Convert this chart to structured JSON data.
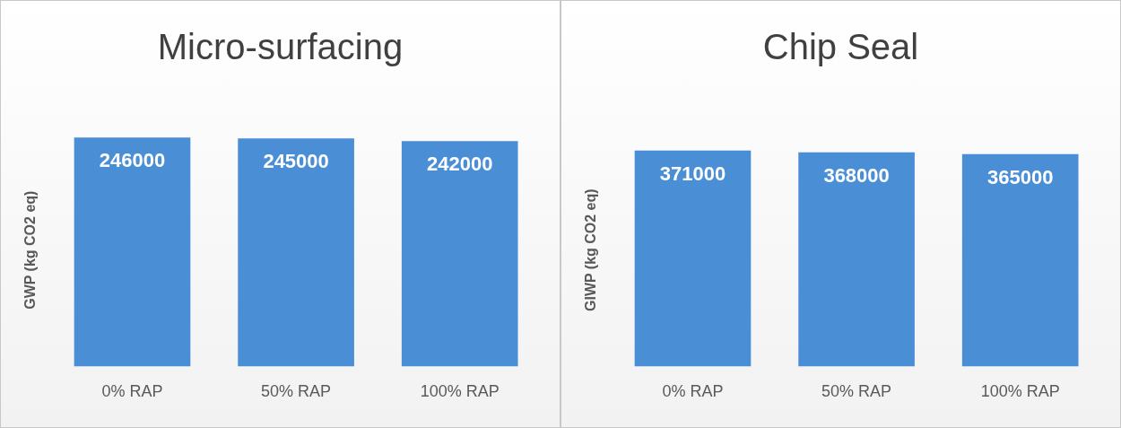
{
  "chart_data": [
    {
      "type": "bar",
      "title": "Micro-surfacing",
      "ylabel": "GWP (kg CO2 eq)",
      "categories": [
        "0% RAP",
        "50% RAP",
        "100% RAP"
      ],
      "values": [
        246000,
        245000,
        242000
      ],
      "color": "#4a8fd6",
      "data_labels": true,
      "tick_labels": "x",
      "grid": false,
      "legend": false
    },
    {
      "type": "bar",
      "title": "Chip Seal",
      "ylabel": "GIWP (kg CO2 eq)",
      "categories": [
        "0% RAP",
        "50% RAP",
        "100% RAP"
      ],
      "values": [
        371000,
        368000,
        365000
      ],
      "color": "#4a8fd6",
      "data_labels": true,
      "tick_labels": "x",
      "grid": false,
      "legend": false
    }
  ]
}
